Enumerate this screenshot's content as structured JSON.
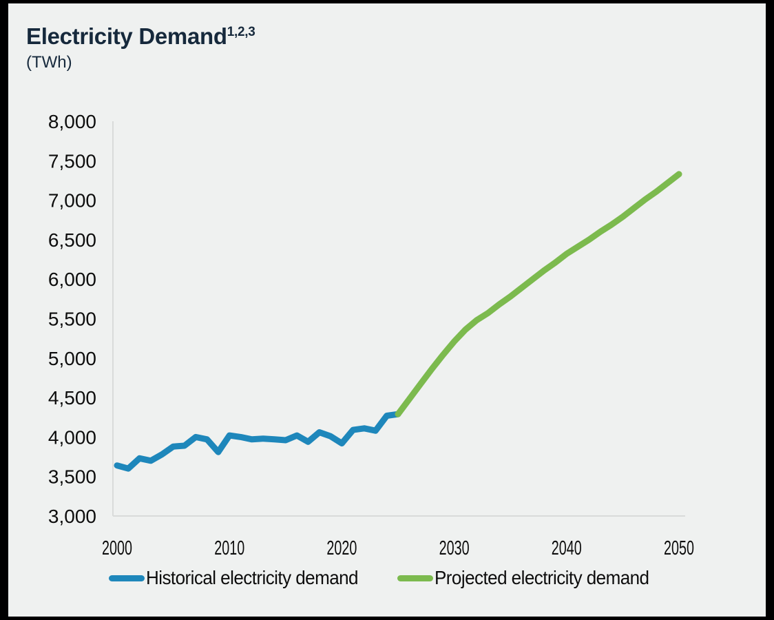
{
  "header": {
    "title": "Electricity Demand",
    "title_superscript": "1,2,3",
    "unit_label": "(TWh)"
  },
  "colors": {
    "background": "#eff1f0",
    "frame_border": "#000000",
    "title_text": "#16293c",
    "axis_line": "#d9dbda",
    "tick_text": "#0d0d0d",
    "historical_line": "#1e87bb",
    "projected_line": "#7cba4e"
  },
  "chart_data": {
    "type": "line",
    "title": "Electricity Demand",
    "unit": "TWh",
    "xlabel": "",
    "ylabel": "(TWh)",
    "xlim": [
      2000,
      2050
    ],
    "ylim": [
      3000,
      8000
    ],
    "grid": false,
    "legend_position": "bottom",
    "ytick_values": [
      8000,
      7500,
      7000,
      6500,
      6000,
      5500,
      5000,
      4500,
      4000,
      3500,
      3000
    ],
    "ytick_labels": [
      "8,000",
      "7,500",
      "7,000",
      "6,500",
      "6,000",
      "5,500",
      "5,000",
      "4,500",
      "4,000",
      "3,500",
      "3,000"
    ],
    "xtick_values": [
      2000,
      2010,
      2020,
      2030,
      2040,
      2050
    ],
    "xtick_labels": [
      "2000",
      "2010",
      "2020",
      "2030",
      "2040",
      "2050"
    ],
    "series": [
      {
        "name": "Historical electricity demand",
        "color": "#1e87bb",
        "x": [
          2000,
          2001,
          2002,
          2003,
          2004,
          2005,
          2006,
          2007,
          2008,
          2009,
          2010,
          2011,
          2012,
          2013,
          2014,
          2015,
          2016,
          2017,
          2018,
          2019,
          2020,
          2021,
          2022,
          2023,
          2024,
          2025
        ],
        "values": [
          3640,
          3600,
          3730,
          3700,
          3780,
          3880,
          3890,
          4000,
          3970,
          3810,
          4020,
          4000,
          3970,
          3980,
          3970,
          3960,
          4020,
          3940,
          4060,
          4010,
          3920,
          4090,
          4110,
          4080,
          4270,
          4290
        ]
      },
      {
        "name": "Projected electricity demand",
        "color": "#7cba4e",
        "x": [
          2025,
          2026,
          2027,
          2028,
          2029,
          2030,
          2031,
          2032,
          2033,
          2034,
          2035,
          2036,
          2037,
          2038,
          2039,
          2040,
          2041,
          2042,
          2043,
          2044,
          2045,
          2046,
          2047,
          2048,
          2049,
          2050
        ],
        "values": [
          4290,
          4480,
          4670,
          4860,
          5040,
          5210,
          5360,
          5480,
          5570,
          5680,
          5780,
          5890,
          6000,
          6110,
          6210,
          6320,
          6410,
          6500,
          6600,
          6690,
          6790,
          6900,
          7010,
          7110,
          7220,
          7330
        ]
      }
    ]
  },
  "legend": {
    "items": [
      {
        "label": "Historical electricity demand",
        "color": "#1e87bb"
      },
      {
        "label": "Projected electricity demand",
        "color": "#7cba4e"
      }
    ]
  }
}
